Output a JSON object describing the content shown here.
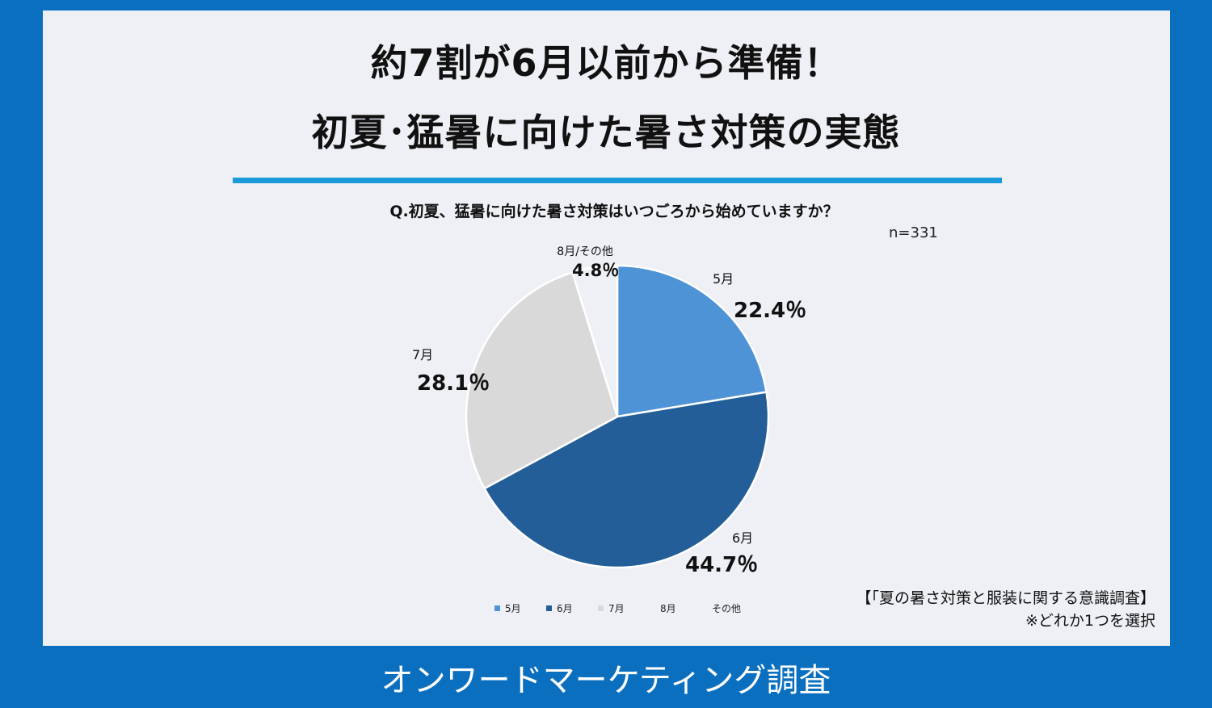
{
  "title_line1": "約7割が6月以前から準備！",
  "title_line2": "初夏･猛暑に向けた暑さ対策の実態",
  "question": "Q.初夏、猛暑に向けた暑さ対策はいつごろから始めていますか？",
  "sample_size": "n=331",
  "source_line1": "【「夏の暑さ対策と服装に関する意識調査】",
  "source_line2": "※どれか1つを選択",
  "footer": "オンワードマーケティング調査",
  "chart_data": {
    "type": "pie",
    "slices": [
      {
        "name": "5月",
        "value": 22.4,
        "label": "22.4％",
        "color": "#4f93d7"
      },
      {
        "name": "6月",
        "value": 44.7,
        "label": "44.7％",
        "color": "#235e98"
      },
      {
        "name": "7月",
        "value": 28.1,
        "label": "28.1％",
        "color": "#d9d9d9"
      },
      {
        "name": "8月/その他",
        "value": 4.8,
        "label": "4.8％",
        "color": "#eef0f5"
      }
    ],
    "legend": [
      {
        "name": "5月",
        "color": "#4f93d7"
      },
      {
        "name": "6月",
        "color": "#235e98"
      },
      {
        "name": "7月",
        "color": "#d9d9d9"
      },
      {
        "name": "8月",
        "color": "#eef0f5"
      },
      {
        "name": "その他",
        "color": "#eef0f5"
      }
    ],
    "legend_position": "bottom"
  }
}
